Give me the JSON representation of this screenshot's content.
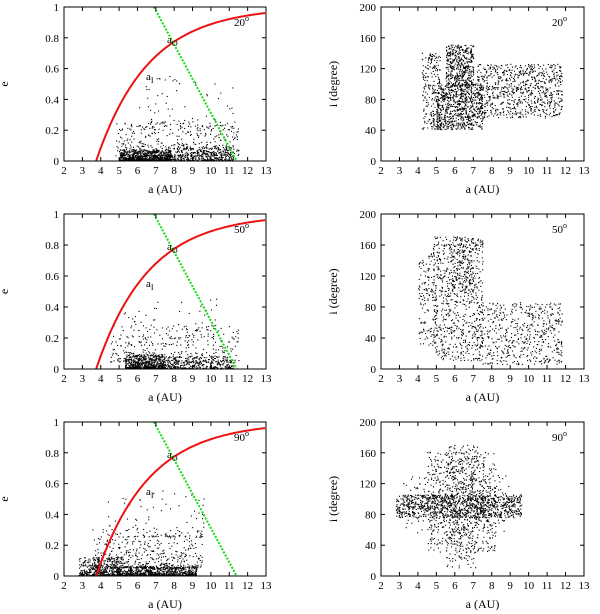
{
  "figure": {
    "panel_pairs": [
      {
        "angle": "20",
        "angle_sup": "o"
      },
      {
        "angle": "50",
        "angle_sup": "o"
      },
      {
        "angle": "90",
        "angle_sup": "o"
      }
    ]
  },
  "colors": {
    "inner_curve": "#ee1111",
    "outer_line": "#11dd11",
    "points": "#000000",
    "frame": "#000000"
  },
  "chart_data": [
    {
      "type": "scatter",
      "panel": "e-vs-a",
      "angle_label": "20",
      "angle_sup": "o",
      "xlabel": "a (AU)",
      "ylabel": "e",
      "xlim": [
        2,
        13
      ],
      "ylim": [
        0,
        1
      ],
      "xticks": [
        "2",
        "3",
        "4",
        "5",
        "6",
        "7",
        "8",
        "9",
        "10",
        "11",
        "12",
        "13"
      ],
      "yticks": [
        "0",
        "0.2",
        "0.4",
        "0.6",
        "0.8",
        "1"
      ],
      "inner_label": "a",
      "inner_sub": "I",
      "outer_label": "a",
      "outer_sub": "O",
      "inner_curve": {
        "a0": 3.75,
        "scale": 2.85,
        "x_end": 13
      },
      "outer_line": {
        "x": [
          6.9,
          11.4
        ],
        "y": [
          1.0,
          0.0
        ]
      },
      "points": {
        "seed": 11,
        "n": 1600,
        "clusters": [
          {
            "w": 0.45,
            "x": [
              5.0,
              7.8
            ],
            "e": [
              0.0,
              0.07
            ]
          },
          {
            "w": 0.25,
            "x": [
              7.5,
              11.2
            ],
            "e": [
              0.0,
              0.09
            ]
          },
          {
            "w": 0.25,
            "x": [
              4.8,
              11.5
            ],
            "e": [
              0.03,
              0.25
            ]
          },
          {
            "w": 0.05,
            "x": [
              6.0,
              11.2
            ],
            "e": [
              0.2,
              0.55
            ]
          }
        ]
      }
    },
    {
      "type": "scatter",
      "panel": "i-vs-a",
      "angle_label": "20",
      "angle_sup": "o",
      "xlabel": "a (AU)",
      "ylabel": "i (degree)",
      "xlim": [
        2,
        13
      ],
      "ylim": [
        0,
        200
      ],
      "xticks": [
        "2",
        "3",
        "4",
        "5",
        "6",
        "7",
        "8",
        "9",
        "10",
        "11",
        "12",
        "13"
      ],
      "yticks": [
        "0",
        "40",
        "80",
        "120",
        "160",
        "200"
      ],
      "points": {
        "seed": 21,
        "n": 2200,
        "clusters": [
          {
            "w": 0.35,
            "x": [
              5.0,
              7.5
            ],
            "i": [
              40,
              100
            ]
          },
          {
            "w": 0.2,
            "x": [
              5.5,
              7.0
            ],
            "i": [
              95,
              150
            ]
          },
          {
            "w": 0.35,
            "x": [
              7.2,
              11.8
            ],
            "i": [
              55,
              125
            ]
          },
          {
            "w": 0.1,
            "x": [
              4.2,
              5.2
            ],
            "i": [
              40,
              140
            ]
          }
        ]
      }
    },
    {
      "type": "scatter",
      "panel": "e-vs-a",
      "angle_label": "50",
      "angle_sup": "o",
      "xlabel": "a (AU)",
      "ylabel": "e",
      "xlim": [
        2,
        13
      ],
      "ylim": [
        0,
        1
      ],
      "xticks": [
        "2",
        "3",
        "4",
        "5",
        "6",
        "7",
        "8",
        "9",
        "10",
        "11",
        "12",
        "13"
      ],
      "yticks": [
        "0",
        "0.2",
        "0.4",
        "0.6",
        "0.8",
        "1"
      ],
      "inner_label": "a",
      "inner_sub": "I",
      "outer_label": "a",
      "outer_sub": "O",
      "inner_curve": {
        "a0": 3.75,
        "scale": 2.85,
        "x_end": 13
      },
      "outer_line": {
        "x": [
          6.9,
          11.4
        ],
        "y": [
          1.0,
          0.0
        ]
      },
      "points": {
        "seed": 31,
        "n": 1300,
        "clusters": [
          {
            "w": 0.45,
            "x": [
              5.3,
              7.4
            ],
            "e": [
              0.0,
              0.09
            ]
          },
          {
            "w": 0.25,
            "x": [
              7.2,
              11.2
            ],
            "e": [
              0.0,
              0.08
            ]
          },
          {
            "w": 0.25,
            "x": [
              4.5,
              11.5
            ],
            "e": [
              0.04,
              0.28
            ]
          },
          {
            "w": 0.05,
            "x": [
              5.0,
              10.5
            ],
            "e": [
              0.2,
              0.45
            ]
          }
        ]
      }
    },
    {
      "type": "scatter",
      "panel": "i-vs-a",
      "angle_label": "50",
      "angle_sup": "o",
      "xlabel": "a (AU)",
      "ylabel": "i (degree)",
      "xlim": [
        2,
        13
      ],
      "ylim": [
        0,
        200
      ],
      "xticks": [
        "2",
        "3",
        "4",
        "5",
        "6",
        "7",
        "8",
        "9",
        "10",
        "11",
        "12",
        "13"
      ],
      "yticks": [
        "0",
        "40",
        "80",
        "120",
        "160",
        "200"
      ],
      "points": {
        "seed": 41,
        "n": 1500,
        "clusters": [
          {
            "w": 0.45,
            "x": [
              4.8,
              7.5
            ],
            "i": [
              10,
              170
            ]
          },
          {
            "w": 0.35,
            "x": [
              7.3,
              11.8
            ],
            "i": [
              5,
              85
            ]
          },
          {
            "w": 0.1,
            "x": [
              4.0,
              5.0
            ],
            "i": [
              30,
              150
            ]
          },
          {
            "w": 0.1,
            "x": [
              5.8,
              7.0
            ],
            "i": [
              100,
              170
            ]
          }
        ]
      }
    },
    {
      "type": "scatter",
      "panel": "e-vs-a",
      "angle_label": "90",
      "angle_sup": "o",
      "xlabel": "a (AU)",
      "ylabel": "e",
      "xlim": [
        2,
        13
      ],
      "ylim": [
        0,
        1
      ],
      "xticks": [
        "2",
        "3",
        "4",
        "5",
        "6",
        "7",
        "8",
        "9",
        "10",
        "11",
        "12",
        "13"
      ],
      "yticks": [
        "0",
        "0.2",
        "0.4",
        "0.6",
        "0.8",
        "1"
      ],
      "inner_label": "a",
      "inner_sub": "I",
      "outer_label": "a",
      "outer_sub": "O",
      "inner_curve": {
        "a0": 3.75,
        "scale": 2.85,
        "x_end": 13
      },
      "outer_line": {
        "x": [
          6.9,
          11.4
        ],
        "y": [
          1.0,
          0.0
        ]
      },
      "points": {
        "seed": 51,
        "n": 1700,
        "clusters": [
          {
            "w": 0.45,
            "x": [
              4.8,
              9.2
            ],
            "e": [
              0.0,
              0.06
            ]
          },
          {
            "w": 0.25,
            "x": [
              2.8,
              5.2
            ],
            "e": [
              0.0,
              0.12
            ]
          },
          {
            "w": 0.25,
            "x": [
              3.5,
              9.5
            ],
            "e": [
              0.05,
              0.3
            ]
          },
          {
            "w": 0.05,
            "x": [
              4.0,
              10.0
            ],
            "e": [
              0.25,
              0.55
            ]
          }
        ]
      }
    },
    {
      "type": "scatter",
      "panel": "i-vs-a",
      "angle_label": "90",
      "angle_sup": "o",
      "xlabel": "a (AU)",
      "ylabel": "i (degree)",
      "xlim": [
        2,
        13
      ],
      "ylim": [
        0,
        200
      ],
      "xticks": [
        "2",
        "3",
        "4",
        "5",
        "6",
        "7",
        "8",
        "9",
        "10",
        "11",
        "12",
        "13"
      ],
      "yticks": [
        "0",
        "40",
        "80",
        "120",
        "160",
        "200"
      ],
      "points": {
        "seed": 61,
        "n": 2000,
        "clusters": [
          {
            "w": 0.45,
            "x": [
              2.8,
              9.6
            ],
            "i": [
              75,
              105
            ]
          },
          {
            "w": 0.3,
            "x": [
              4.5,
              8.2
            ],
            "i": [
              30,
              160
            ]
          },
          {
            "w": 0.15,
            "x": [
              5.5,
              7.2
            ],
            "i": [
              10,
              170
            ]
          },
          {
            "w": 0.1,
            "x": [
              3.2,
              9.0
            ],
            "i": [
              55,
              130
            ]
          }
        ]
      }
    }
  ]
}
